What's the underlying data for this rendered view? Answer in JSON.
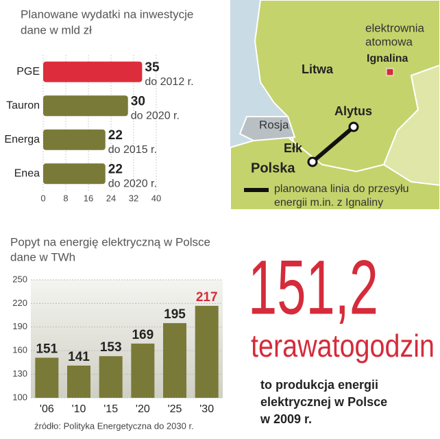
{
  "chart_data": [
    {
      "type": "hbar",
      "title": "Planowane wydatki na inwestycje",
      "subtitle": "dane w mld zł",
      "categories": [
        "PGE",
        "Tauron",
        "Energa",
        "Enea"
      ],
      "values": [
        35,
        30,
        22,
        22
      ],
      "value_notes": [
        "do 2012 r.",
        "do 2020 r.",
        "do 2015 r.",
        "do 2020 r."
      ],
      "colors": [
        "#dd2d3c",
        "#7a7a38",
        "#7a7a38",
        "#7a7a38"
      ],
      "xlim": [
        0,
        40
      ],
      "xticks": [
        0,
        8,
        16,
        24,
        32,
        40
      ],
      "grid": true
    },
    {
      "type": "bar",
      "title": "Popyt na energię elektryczną w Polsce",
      "subtitle": "dane w TWh",
      "categories": [
        "'06",
        "'10",
        "'15",
        "'20",
        "'25",
        "'30"
      ],
      "values": [
        151,
        141,
        153,
        169,
        195,
        217
      ],
      "color": "#7a7a38",
      "label_colors": [
        "#222222",
        "#222222",
        "#222222",
        "#222222",
        "#222222",
        "#d52b3a"
      ],
      "ylim": [
        100,
        250
      ],
      "yticks": [
        100,
        130,
        160,
        190,
        220,
        250
      ],
      "grid": true,
      "source": "źródło: Polityka Energetyczna do 2030 r."
    }
  ],
  "map": {
    "plant": [
      "elektrownia",
      "atomowa"
    ],
    "ignalina": "Ignalina",
    "lithuania": "Litwa",
    "russia": "Rosja",
    "alytus": "Alytus",
    "elk": "Ełk",
    "poland": "Polska",
    "legend": [
      "planowana linia do przesyłu",
      "energii m.in. z Ignaliny"
    ]
  },
  "callout": {
    "number": "151,2",
    "unit": "terawatogodzin",
    "text": [
      "to produkcja energii",
      "elektrycznej w Polsce",
      "w 2009 r."
    ]
  }
}
